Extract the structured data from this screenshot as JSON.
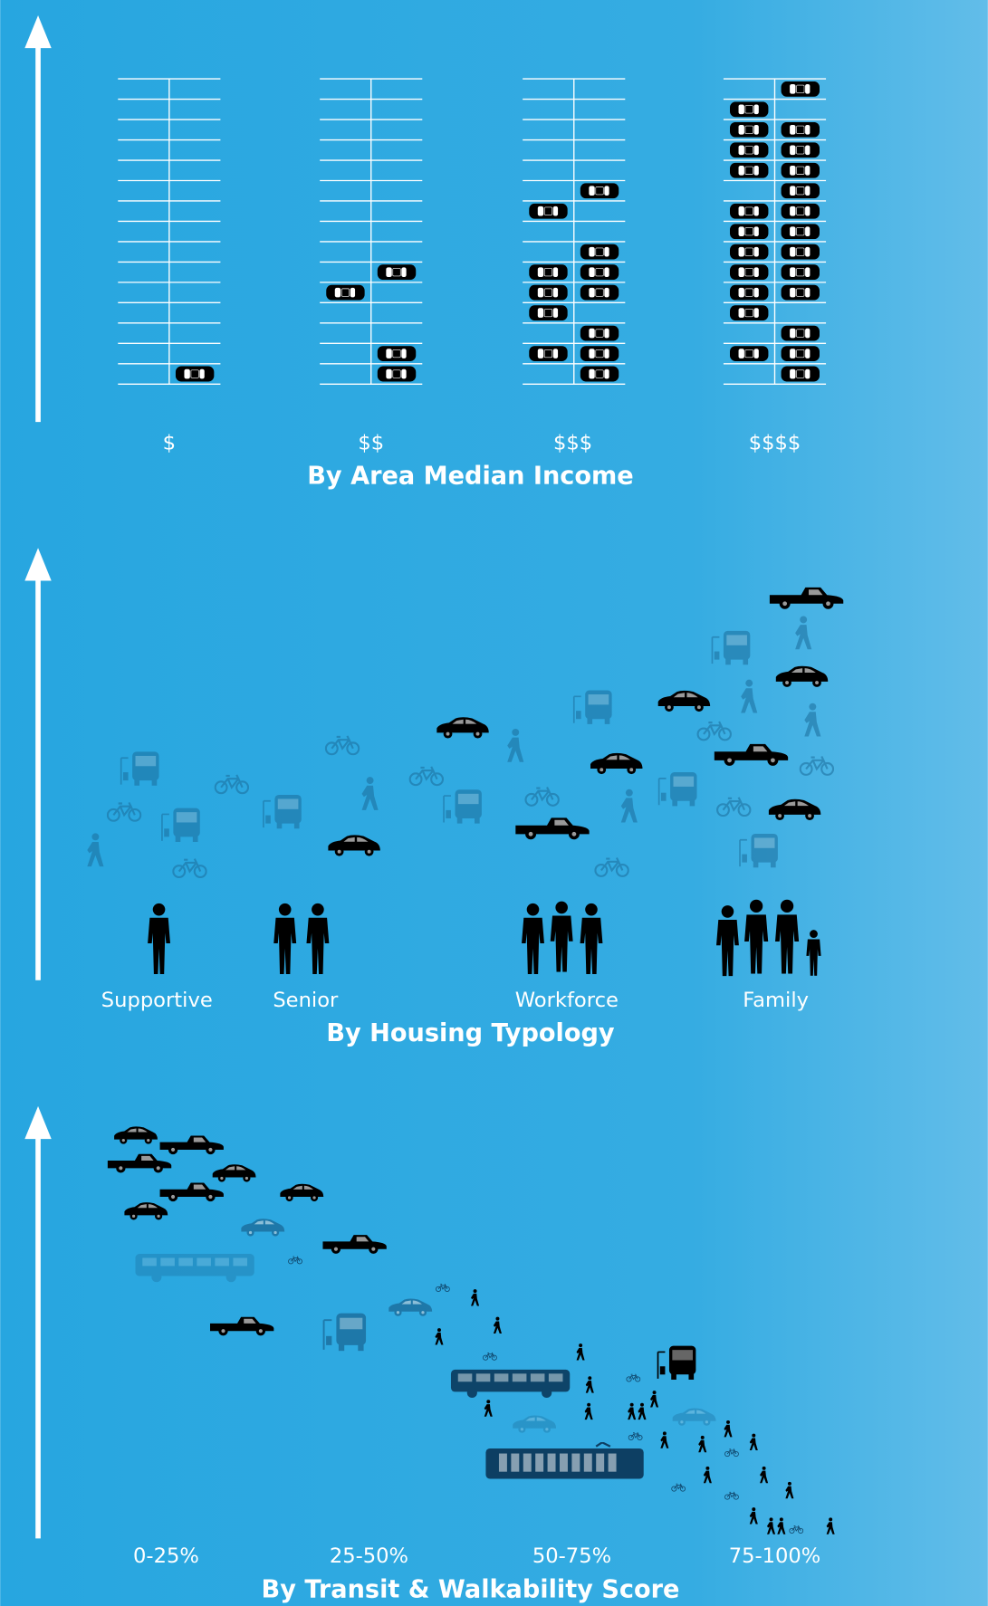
{
  "panels": [
    {
      "title": "By Area Median Income",
      "labels": [
        "$",
        "$$",
        "$$$",
        "$$$$"
      ]
    },
    {
      "title": "By Housing Typology",
      "labels": [
        "Supportive",
        "Senior",
        "Workforce",
        "Family"
      ]
    },
    {
      "title": "By Transit & Walkability Score",
      "labels": [
        "0-25%",
        "25-50%",
        "50-75%",
        "75-100%"
      ]
    }
  ]
}
